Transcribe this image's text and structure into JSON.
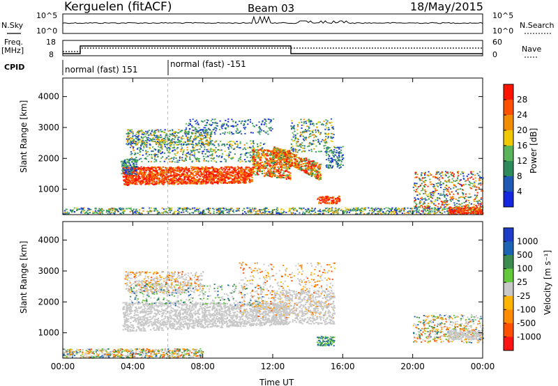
{
  "header": {
    "station": "Kerguelen (fitACF)",
    "beam": "Beam 03",
    "date": "18/May/2015"
  },
  "noise_panel": {
    "left_label": "N.Sky",
    "right_label": "N.Search",
    "left_ticks": [
      "10^5",
      "10^0"
    ],
    "right_ticks": [
      "10^5",
      "10^0"
    ]
  },
  "freq_panel": {
    "left_label_1": "Freq.",
    "left_label_2": "[MHz]",
    "right_label": "Nave",
    "left_ticks": [
      "18",
      "8"
    ],
    "right_ticks": [
      "60",
      "0"
    ]
  },
  "cpid": {
    "label": "CPID",
    "segments": [
      "normal (fast) 151",
      "normal (fast) -151"
    ]
  },
  "chart_data": [
    {
      "type": "heatmap",
      "ylabel": "Slant Range [km]",
      "xlabel": "",
      "x_ticks": [
        "00:00",
        "04:00",
        "08:00",
        "12:00",
        "16:00",
        "20:00",
        "00:00"
      ],
      "xlim_hours": [
        0,
        24
      ],
      "ylim": [
        180,
        4600
      ],
      "y_ticks": [
        1000,
        2000,
        3000,
        4000
      ],
      "colorbar": {
        "label": "Power [dB]",
        "ticks": [
          "4",
          "8",
          "12",
          "16",
          "20",
          "24",
          "28"
        ]
      }
    },
    {
      "type": "heatmap",
      "ylabel": "Slant Range [km]",
      "xlabel": "Time UT",
      "x_ticks": [
        "00:00",
        "04:00",
        "08:00",
        "12:00",
        "16:00",
        "20:00",
        "00:00"
      ],
      "xlim_hours": [
        0,
        24
      ],
      "ylim": [
        180,
        4600
      ],
      "y_ticks": [
        1000,
        2000,
        3000,
        4000
      ],
      "colorbar": {
        "label": "Velocity [m s⁻¹]",
        "ticks": [
          "1000",
          "500",
          "100",
          "25",
          "-25",
          "-100",
          "-500",
          "-1000"
        ]
      }
    }
  ],
  "colors": {
    "power_scale": [
      "#1428e0",
      "#1e5ab4",
      "#2e8a5a",
      "#5ab45a",
      "#f0c800",
      "#f08c00",
      "#ff5000",
      "#ff1400"
    ],
    "velocity_scale": [
      "#1e3cc8",
      "#1e64b4",
      "#3c8c50",
      "#64c83c",
      "#c8c8c8",
      "#ffb400",
      "#ff8c00",
      "#ff5000",
      "#ff1414"
    ],
    "ground_scatter": "#c8c8c8"
  }
}
